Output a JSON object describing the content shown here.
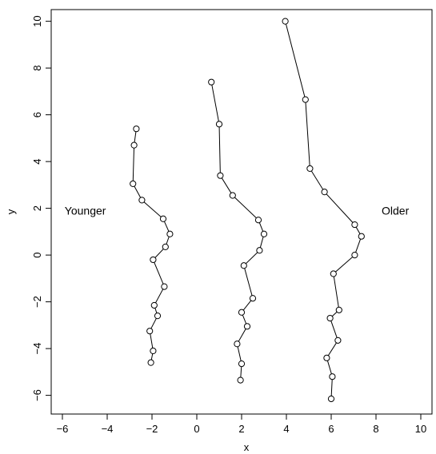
{
  "chart_data": {
    "type": "line",
    "xlabel": "x",
    "ylabel": "y",
    "xlim": [
      -6.5,
      10.5
    ],
    "ylim": [
      -6.8,
      10.5
    ],
    "x_ticks": [
      -6,
      -4,
      -2,
      0,
      2,
      4,
      6,
      8,
      10
    ],
    "y_ticks": [
      -6,
      -4,
      -2,
      0,
      2,
      4,
      6,
      8,
      10
    ],
    "annotations": [
      {
        "text": "Younger",
        "x": -5.9,
        "y": 1.9
      },
      {
        "text": "Older",
        "x": 8.25,
        "y": 1.9
      }
    ],
    "series": [
      {
        "points": [
          [
            -2.7,
            5.4
          ],
          [
            -2.8,
            4.7
          ],
          [
            -2.85,
            3.05
          ],
          [
            -2.45,
            2.35
          ],
          [
            -1.5,
            1.55
          ],
          [
            -1.2,
            0.9
          ],
          [
            -1.4,
            0.35
          ],
          [
            -1.95,
            -0.2
          ],
          [
            -1.45,
            -1.35
          ],
          [
            -1.9,
            -2.15
          ],
          [
            -1.75,
            -2.6
          ],
          [
            -2.1,
            -3.25
          ],
          [
            -1.95,
            -4.1
          ],
          [
            -2.05,
            -4.6
          ]
        ]
      },
      {
        "points": [
          [
            0.65,
            7.4
          ],
          [
            1.0,
            5.6
          ],
          [
            1.05,
            3.4
          ],
          [
            1.6,
            2.55
          ],
          [
            2.75,
            1.5
          ],
          [
            3.0,
            0.9
          ],
          [
            2.8,
            0.2
          ],
          [
            2.1,
            -0.45
          ],
          [
            2.5,
            -1.85
          ],
          [
            2.0,
            -2.45
          ],
          [
            2.25,
            -3.05
          ],
          [
            1.8,
            -3.8
          ],
          [
            2.0,
            -4.65
          ],
          [
            1.95,
            -5.35
          ]
        ]
      },
      {
        "points": [
          [
            3.95,
            10.0
          ],
          [
            4.85,
            6.65
          ],
          [
            5.05,
            3.7
          ],
          [
            5.7,
            2.7
          ],
          [
            7.05,
            1.3
          ],
          [
            7.35,
            0.8
          ],
          [
            7.05,
            0.0
          ],
          [
            6.1,
            -0.8
          ],
          [
            6.35,
            -2.35
          ],
          [
            5.95,
            -2.7
          ],
          [
            6.3,
            -3.65
          ],
          [
            5.8,
            -4.4
          ],
          [
            6.05,
            -5.2
          ],
          [
            6.0,
            -6.15
          ]
        ]
      }
    ]
  }
}
